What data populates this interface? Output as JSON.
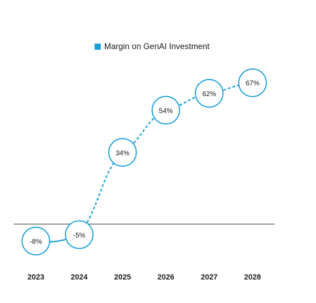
{
  "chart_data": {
    "type": "line",
    "categories": [
      "2023",
      "2024",
      "2025",
      "2026",
      "2027",
      "2028"
    ],
    "series": [
      {
        "name": "Margin on GenAI Investment",
        "values": [
          -8,
          -5,
          34,
          54,
          62,
          67
        ],
        "data_labels": [
          "-8%",
          "-5%",
          "34%",
          "54%",
          "62%",
          "67%"
        ],
        "line_style_by_segment": [
          "solid",
          "dashed",
          "dashed",
          "dashed",
          "dashed"
        ]
      }
    ],
    "title": "",
    "xlabel": "",
    "ylabel": "",
    "ylim": [
      -14,
      80
    ],
    "y_axis_visible": false,
    "zero_line": true,
    "grid": false,
    "legend": "top-center",
    "colors": {
      "series": "#1aa0d8",
      "zero_line": "#666666",
      "label_text": "#1a1a1a",
      "marker_fill": "#ffffff"
    }
  }
}
